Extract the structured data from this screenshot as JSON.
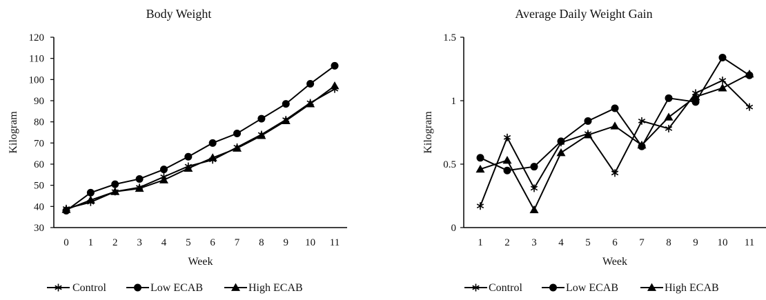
{
  "chart_data": [
    {
      "type": "line",
      "title": "Body Weight",
      "xlabel": "Week",
      "ylabel": "Kilogram",
      "x": [
        0,
        1,
        2,
        3,
        4,
        5,
        6,
        7,
        8,
        9,
        10,
        11
      ],
      "ylim": [
        30,
        120
      ],
      "yticks": [
        30,
        40,
        50,
        60,
        70,
        80,
        90,
        100,
        110,
        120
      ],
      "grid": false,
      "legend_position": "bottom",
      "series": [
        {
          "name": "Control",
          "marker": "asterisk",
          "values": [
            39,
            42,
            47,
            49,
            54,
            59,
            62,
            68,
            74,
            81,
            89,
            95.5
          ]
        },
        {
          "name": "Low ECAB",
          "marker": "circle",
          "values": [
            38,
            46.5,
            50.5,
            53,
            57.5,
            63.5,
            70,
            74.5,
            81.5,
            88.5,
            98,
            106.5
          ]
        },
        {
          "name": "High ECAB",
          "marker": "triangle",
          "values": [
            38.5,
            43,
            47,
            48.5,
            52.5,
            58,
            63,
            67.5,
            73.5,
            80.5,
            88.5,
            97
          ]
        }
      ]
    },
    {
      "type": "line",
      "title": "Average Daily Weight Gain",
      "xlabel": "Week",
      "ylabel": "Kilogram",
      "x": [
        1,
        2,
        3,
        4,
        5,
        6,
        7,
        8,
        9,
        10,
        11
      ],
      "ylim": [
        0,
        1.5
      ],
      "yticks": [
        0,
        0.5,
        1,
        1.5
      ],
      "grid": false,
      "legend_position": "bottom",
      "series": [
        {
          "name": "Control",
          "marker": "asterisk",
          "values": [
            0.17,
            0.71,
            0.31,
            0.67,
            0.74,
            0.43,
            0.84,
            0.78,
            1.06,
            1.16,
            0.95
          ]
        },
        {
          "name": "Low ECAB",
          "marker": "circle",
          "values": [
            0.55,
            0.45,
            0.48,
            0.68,
            0.84,
            0.94,
            0.64,
            1.02,
            0.99,
            1.34,
            1.2
          ]
        },
        {
          "name": "High ECAB",
          "marker": "triangle",
          "values": [
            0.46,
            0.53,
            0.14,
            0.59,
            0.73,
            0.8,
            0.65,
            0.87,
            1.03,
            1.1,
            1.21
          ]
        }
      ]
    }
  ]
}
